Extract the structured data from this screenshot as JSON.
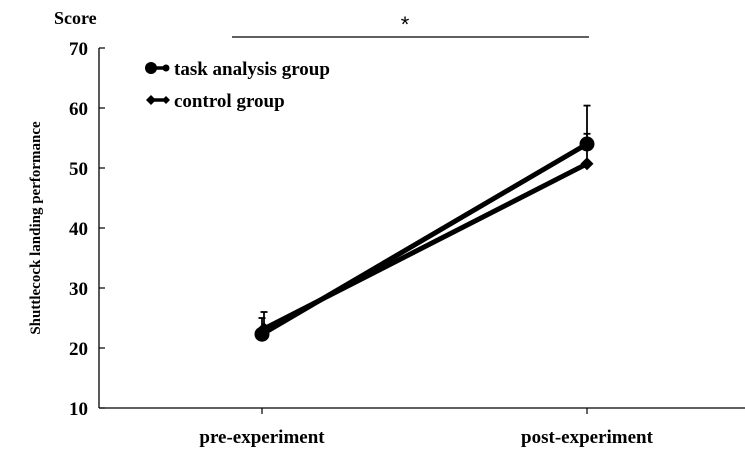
{
  "chart_data": {
    "type": "line",
    "categories": [
      "pre-experiment",
      "post-experiment"
    ],
    "series": [
      {
        "name": "task analysis group",
        "marker": "circle",
        "values": [
          22.3,
          54.0
        ],
        "error": [
          2.7,
          6.4
        ]
      },
      {
        "name": "control group",
        "marker": "diamond",
        "values": [
          23.2,
          50.7
        ],
        "error": [
          2.8,
          5.0
        ]
      }
    ],
    "ylabel": "Shuttlecock landing performance",
    "yunit": "Score",
    "ylim": [
      10,
      70
    ],
    "yticks": [
      10,
      20,
      30,
      40,
      50,
      60,
      70
    ],
    "significance": {
      "label": "*",
      "span": [
        "pre-experiment",
        "post-experiment"
      ]
    },
    "legend_position": "top-left",
    "grid": false,
    "line_color": "#000000"
  }
}
